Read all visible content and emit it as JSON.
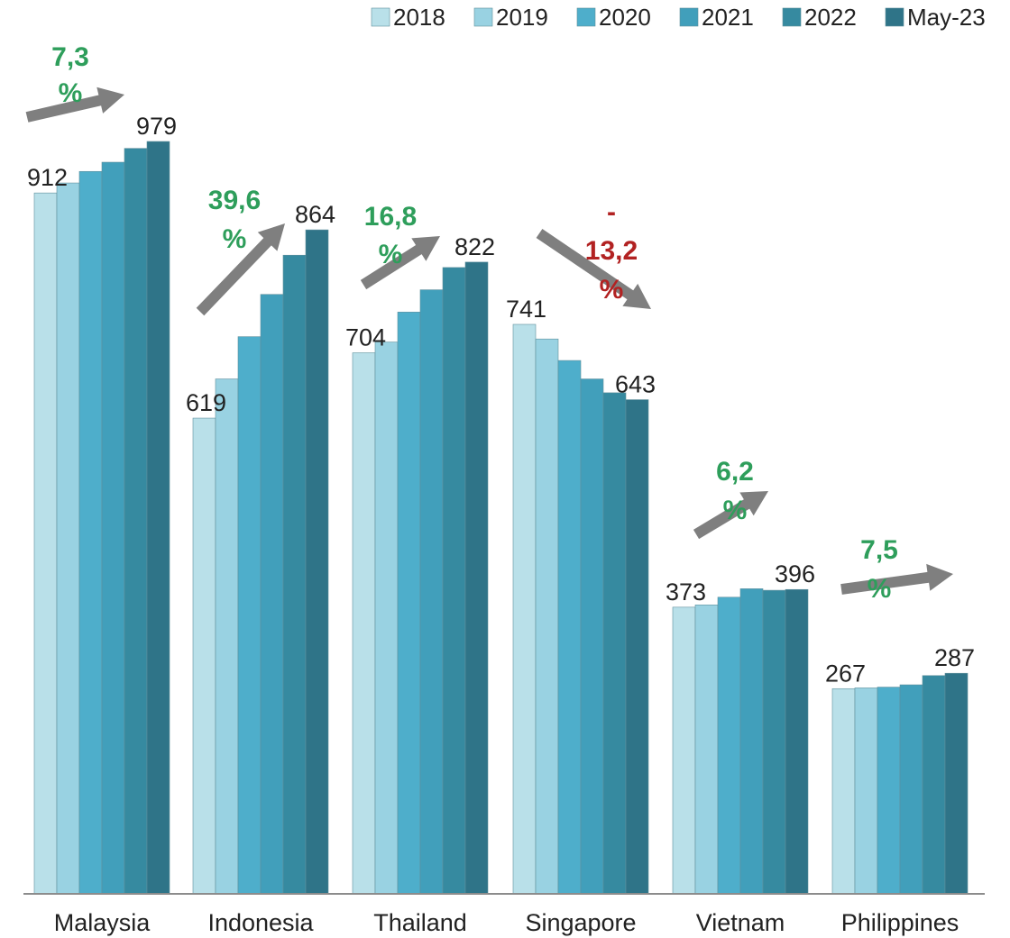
{
  "chart_data": {
    "type": "bar",
    "title": "",
    "xlabel": "",
    "ylabel": "",
    "ylim": [
      0,
      1000
    ],
    "grid": false,
    "legend_position": "top-right",
    "categories": [
      "Malaysia",
      "Indonesia",
      "Thailand",
      "Singapore",
      "Vietnam",
      "Philippines"
    ],
    "series": [
      {
        "name": "2018",
        "color": "#b9e0e9",
        "values": [
          912,
          619,
          704,
          741,
          373,
          267
        ]
      },
      {
        "name": "2019",
        "color": "#99d2e2",
        "values": [
          925,
          670,
          718,
          722,
          376,
          268
        ]
      },
      {
        "name": "2020",
        "color": "#4eaecb",
        "values": [
          940,
          725,
          757,
          694,
          386,
          269
        ]
      },
      {
        "name": "2021",
        "color": "#419fbb",
        "values": [
          952,
          780,
          786,
          670,
          397,
          272
        ]
      },
      {
        "name": "2022",
        "color": "#368aa0",
        "values": [
          970,
          831,
          815,
          652,
          395,
          284
        ]
      },
      {
        "name": "May-23",
        "color": "#2f7488",
        "values": [
          979,
          864,
          822,
          643,
          396,
          287
        ]
      }
    ],
    "data_labels": [
      {
        "category": "Malaysia",
        "first": "912",
        "last": "979"
      },
      {
        "category": "Indonesia",
        "first": "619",
        "last": "864"
      },
      {
        "category": "Thailand",
        "first": "704",
        "last": "822"
      },
      {
        "category": "Singapore",
        "first": "741",
        "last": "643"
      },
      {
        "category": "Vietnam",
        "first": "373",
        "last": "396"
      },
      {
        "category": "Philippines",
        "first": "267",
        "last": "287"
      }
    ],
    "annotations": [
      {
        "category": "Malaysia",
        "value": "7,3",
        "unit": "%",
        "sign": "",
        "direction": "up",
        "color": "#2e9e5b"
      },
      {
        "category": "Indonesia",
        "value": "39,6",
        "unit": "%",
        "sign": "",
        "direction": "up",
        "color": "#2e9e5b"
      },
      {
        "category": "Thailand",
        "value": "16,8",
        "unit": "%",
        "sign": "",
        "direction": "up",
        "color": "#2e9e5b"
      },
      {
        "category": "Singapore",
        "value": "13,2",
        "unit": "%",
        "sign": "-",
        "direction": "down",
        "color": "#b22222"
      },
      {
        "category": "Vietnam",
        "value": "6,2",
        "unit": "%",
        "sign": "",
        "direction": "up",
        "color": "#2e9e5b"
      },
      {
        "category": "Philippines",
        "value": "7,5",
        "unit": "%",
        "sign": "",
        "direction": "up",
        "color": "#2e9e5b"
      }
    ],
    "arrow_color": "#7f7f7f",
    "axis_color": "#8c8c8c"
  }
}
